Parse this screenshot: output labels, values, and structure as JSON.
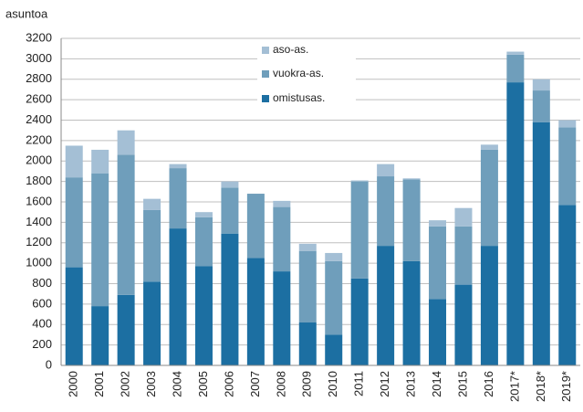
{
  "chart_data": {
    "type": "stacked_bar",
    "y_label": "asuntoa",
    "categories": [
      "2000",
      "2001",
      "2002",
      "2003",
      "2004",
      "2005",
      "2006",
      "2007",
      "2008",
      "2009",
      "2010",
      "2011",
      "2012",
      "2013",
      "2014",
      "2015",
      "2016",
      "2017*",
      "2018*",
      "2019*"
    ],
    "series": [
      {
        "name": "omistusas.",
        "color": "#1c6fa2",
        "values": [
          960,
          580,
          690,
          820,
          1340,
          970,
          1290,
          1050,
          920,
          420,
          300,
          850,
          1170,
          1020,
          650,
          790,
          1170,
          2770,
          2380,
          1570
        ]
      },
      {
        "name": "vuokra-as.",
        "color": "#6f9ebb",
        "values": [
          880,
          1300,
          1370,
          700,
          590,
          480,
          450,
          630,
          630,
          700,
          720,
          950,
          680,
          800,
          710,
          570,
          940,
          270,
          310,
          760
        ]
      },
      {
        "name": "aso-as.",
        "color": "#a4bfd5",
        "values": [
          310,
          230,
          240,
          110,
          40,
          50,
          60,
          0,
          60,
          70,
          80,
          10,
          120,
          10,
          60,
          180,
          50,
          30,
          110,
          70
        ]
      }
    ],
    "ylim": [
      0,
      3200
    ],
    "yticks": [
      0,
      200,
      400,
      600,
      800,
      1000,
      1200,
      1400,
      1600,
      1800,
      2000,
      2200,
      2400,
      2600,
      2800,
      3000,
      3200
    ],
    "grid": true
  }
}
